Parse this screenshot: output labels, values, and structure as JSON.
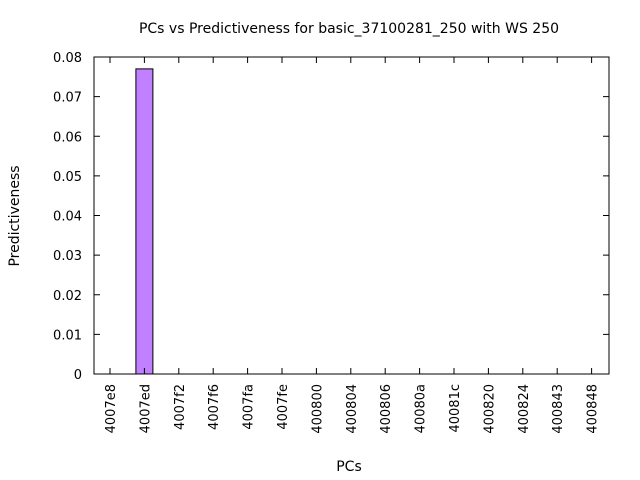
{
  "chart_data": {
    "type": "bar",
    "title": "PCs vs Predictiveness for basic_37100281_250 with WS 250",
    "xlabel": "PCs",
    "ylabel": "Predictiveness",
    "categories": [
      "4007e8",
      "4007ed",
      "4007f2",
      "4007f6",
      "4007fa",
      "4007fe",
      "400800",
      "400804",
      "400806",
      "40080a",
      "40081c",
      "400820",
      "400824",
      "400843",
      "400848"
    ],
    "values": [
      0,
      0.077,
      0,
      0,
      0,
      0,
      0,
      0,
      0,
      0,
      0,
      0,
      0,
      0,
      0
    ],
    "ylim": [
      0,
      0.08
    ],
    "yticks": [
      {
        "value": 0,
        "label": "0"
      },
      {
        "value": 0.01,
        "label": "0.01"
      },
      {
        "value": 0.02,
        "label": "0.02"
      },
      {
        "value": 0.03,
        "label": "0.03"
      },
      {
        "value": 0.04,
        "label": "0.04"
      },
      {
        "value": 0.05,
        "label": "0.05"
      },
      {
        "value": 0.06,
        "label": "0.06"
      },
      {
        "value": 0.07,
        "label": "0.07"
      },
      {
        "value": 0.08,
        "label": "0.08"
      }
    ],
    "grid": false,
    "legend": "none",
    "colors": {
      "bar_fill": "#c080ff",
      "bar_stroke": "#000000",
      "axis": "#000000"
    }
  }
}
